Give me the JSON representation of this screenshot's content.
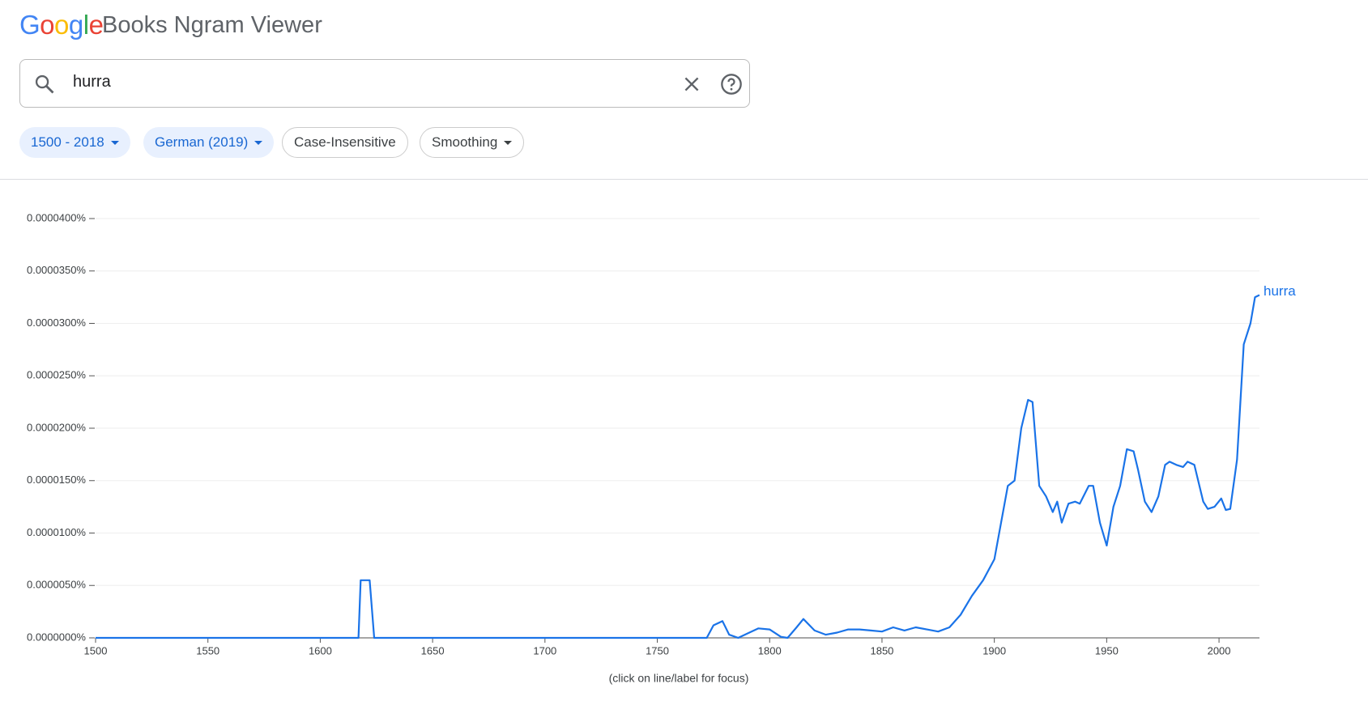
{
  "header": {
    "logo": [
      "G",
      "o",
      "o",
      "g",
      "l",
      "e"
    ],
    "title": "Books Ngram Viewer"
  },
  "search": {
    "query": "hurra"
  },
  "filters": [
    "1500 - 2018",
    "German (2019)",
    "Case-Insensitive",
    "Smoothing"
  ],
  "chart_data": {
    "type": "line",
    "x": [
      1500,
      1615,
      1617,
      1618,
      1622,
      1624,
      1772,
      1775,
      1779,
      1782,
      1786,
      1790,
      1795,
      1800,
      1805,
      1808,
      1812,
      1815,
      1820,
      1825,
      1830,
      1835,
      1840,
      1845,
      1850,
      1855,
      1860,
      1865,
      1870,
      1875,
      1880,
      1885,
      1890,
      1895,
      1900,
      1903,
      1906,
      1909,
      1912,
      1915,
      1917,
      1920,
      1923,
      1926,
      1928,
      1930,
      1933,
      1936,
      1938,
      1942,
      1944,
      1947,
      1950,
      1953,
      1956,
      1959,
      1962,
      1964,
      1967,
      1970,
      1973,
      1976,
      1978,
      1981,
      1984,
      1986,
      1989,
      1993,
      1995,
      1998,
      2001,
      2003,
      2005,
      2008,
      2011,
      2014,
      2016,
      2018
    ],
    "series": [
      {
        "name": "hurra",
        "color": "#1a73e8",
        "values": [
          0,
          0,
          0,
          5.5e-06,
          5.5e-06,
          0,
          0,
          1.2e-06,
          1.6e-06,
          3e-07,
          0,
          4e-07,
          9e-07,
          8e-07,
          1e-07,
          0,
          1e-06,
          1.8e-06,
          7e-07,
          3e-07,
          5e-07,
          8e-07,
          8e-07,
          7e-07,
          6e-07,
          1e-06,
          7e-07,
          1e-06,
          8e-07,
          6e-07,
          1e-06,
          2.2e-06,
          4e-06,
          5.5e-06,
          7.5e-06,
          1.1e-05,
          1.45e-05,
          1.5e-05,
          2e-05,
          2.27e-05,
          2.25e-05,
          1.45e-05,
          1.35e-05,
          1.2e-05,
          1.3e-05,
          1.1e-05,
          1.28e-05,
          1.3e-05,
          1.28e-05,
          1.45e-05,
          1.45e-05,
          1.1e-05,
          8.8e-06,
          1.25e-05,
          1.45e-05,
          1.8e-05,
          1.78e-05,
          1.6e-05,
          1.3e-05,
          1.2e-05,
          1.35e-05,
          1.65e-05,
          1.68e-05,
          1.65e-05,
          1.63e-05,
          1.68e-05,
          1.65e-05,
          1.3e-05,
          1.23e-05,
          1.25e-05,
          1.33e-05,
          1.22e-05,
          1.23e-05,
          1.7e-05,
          2.8e-05,
          3e-05,
          3.25e-05,
          3.27e-05
        ]
      }
    ],
    "xlim": [
      1500,
      2018
    ],
    "xticks": [
      1500,
      1550,
      1600,
      1650,
      1700,
      1750,
      1800,
      1850,
      1900,
      1950,
      2000
    ],
    "ylim": [
      0,
      4e-05
    ],
    "yticks": [
      {
        "value": 0,
        "label": "0.0000000%"
      },
      {
        "value": 5e-06,
        "label": "0.0000050%"
      },
      {
        "value": 1e-05,
        "label": "0.0000100%"
      },
      {
        "value": 1.5e-05,
        "label": "0.0000150%"
      },
      {
        "value": 2e-05,
        "label": "0.0000200%"
      },
      {
        "value": 2.5e-05,
        "label": "0.0000250%"
      },
      {
        "value": 3e-05,
        "label": "0.0000300%"
      },
      {
        "value": 3.5e-05,
        "label": "0.0000350%"
      },
      {
        "value": 4e-05,
        "label": "0.0000400%"
      }
    ],
    "grid": true,
    "note": "(click on line/label for focus)"
  }
}
